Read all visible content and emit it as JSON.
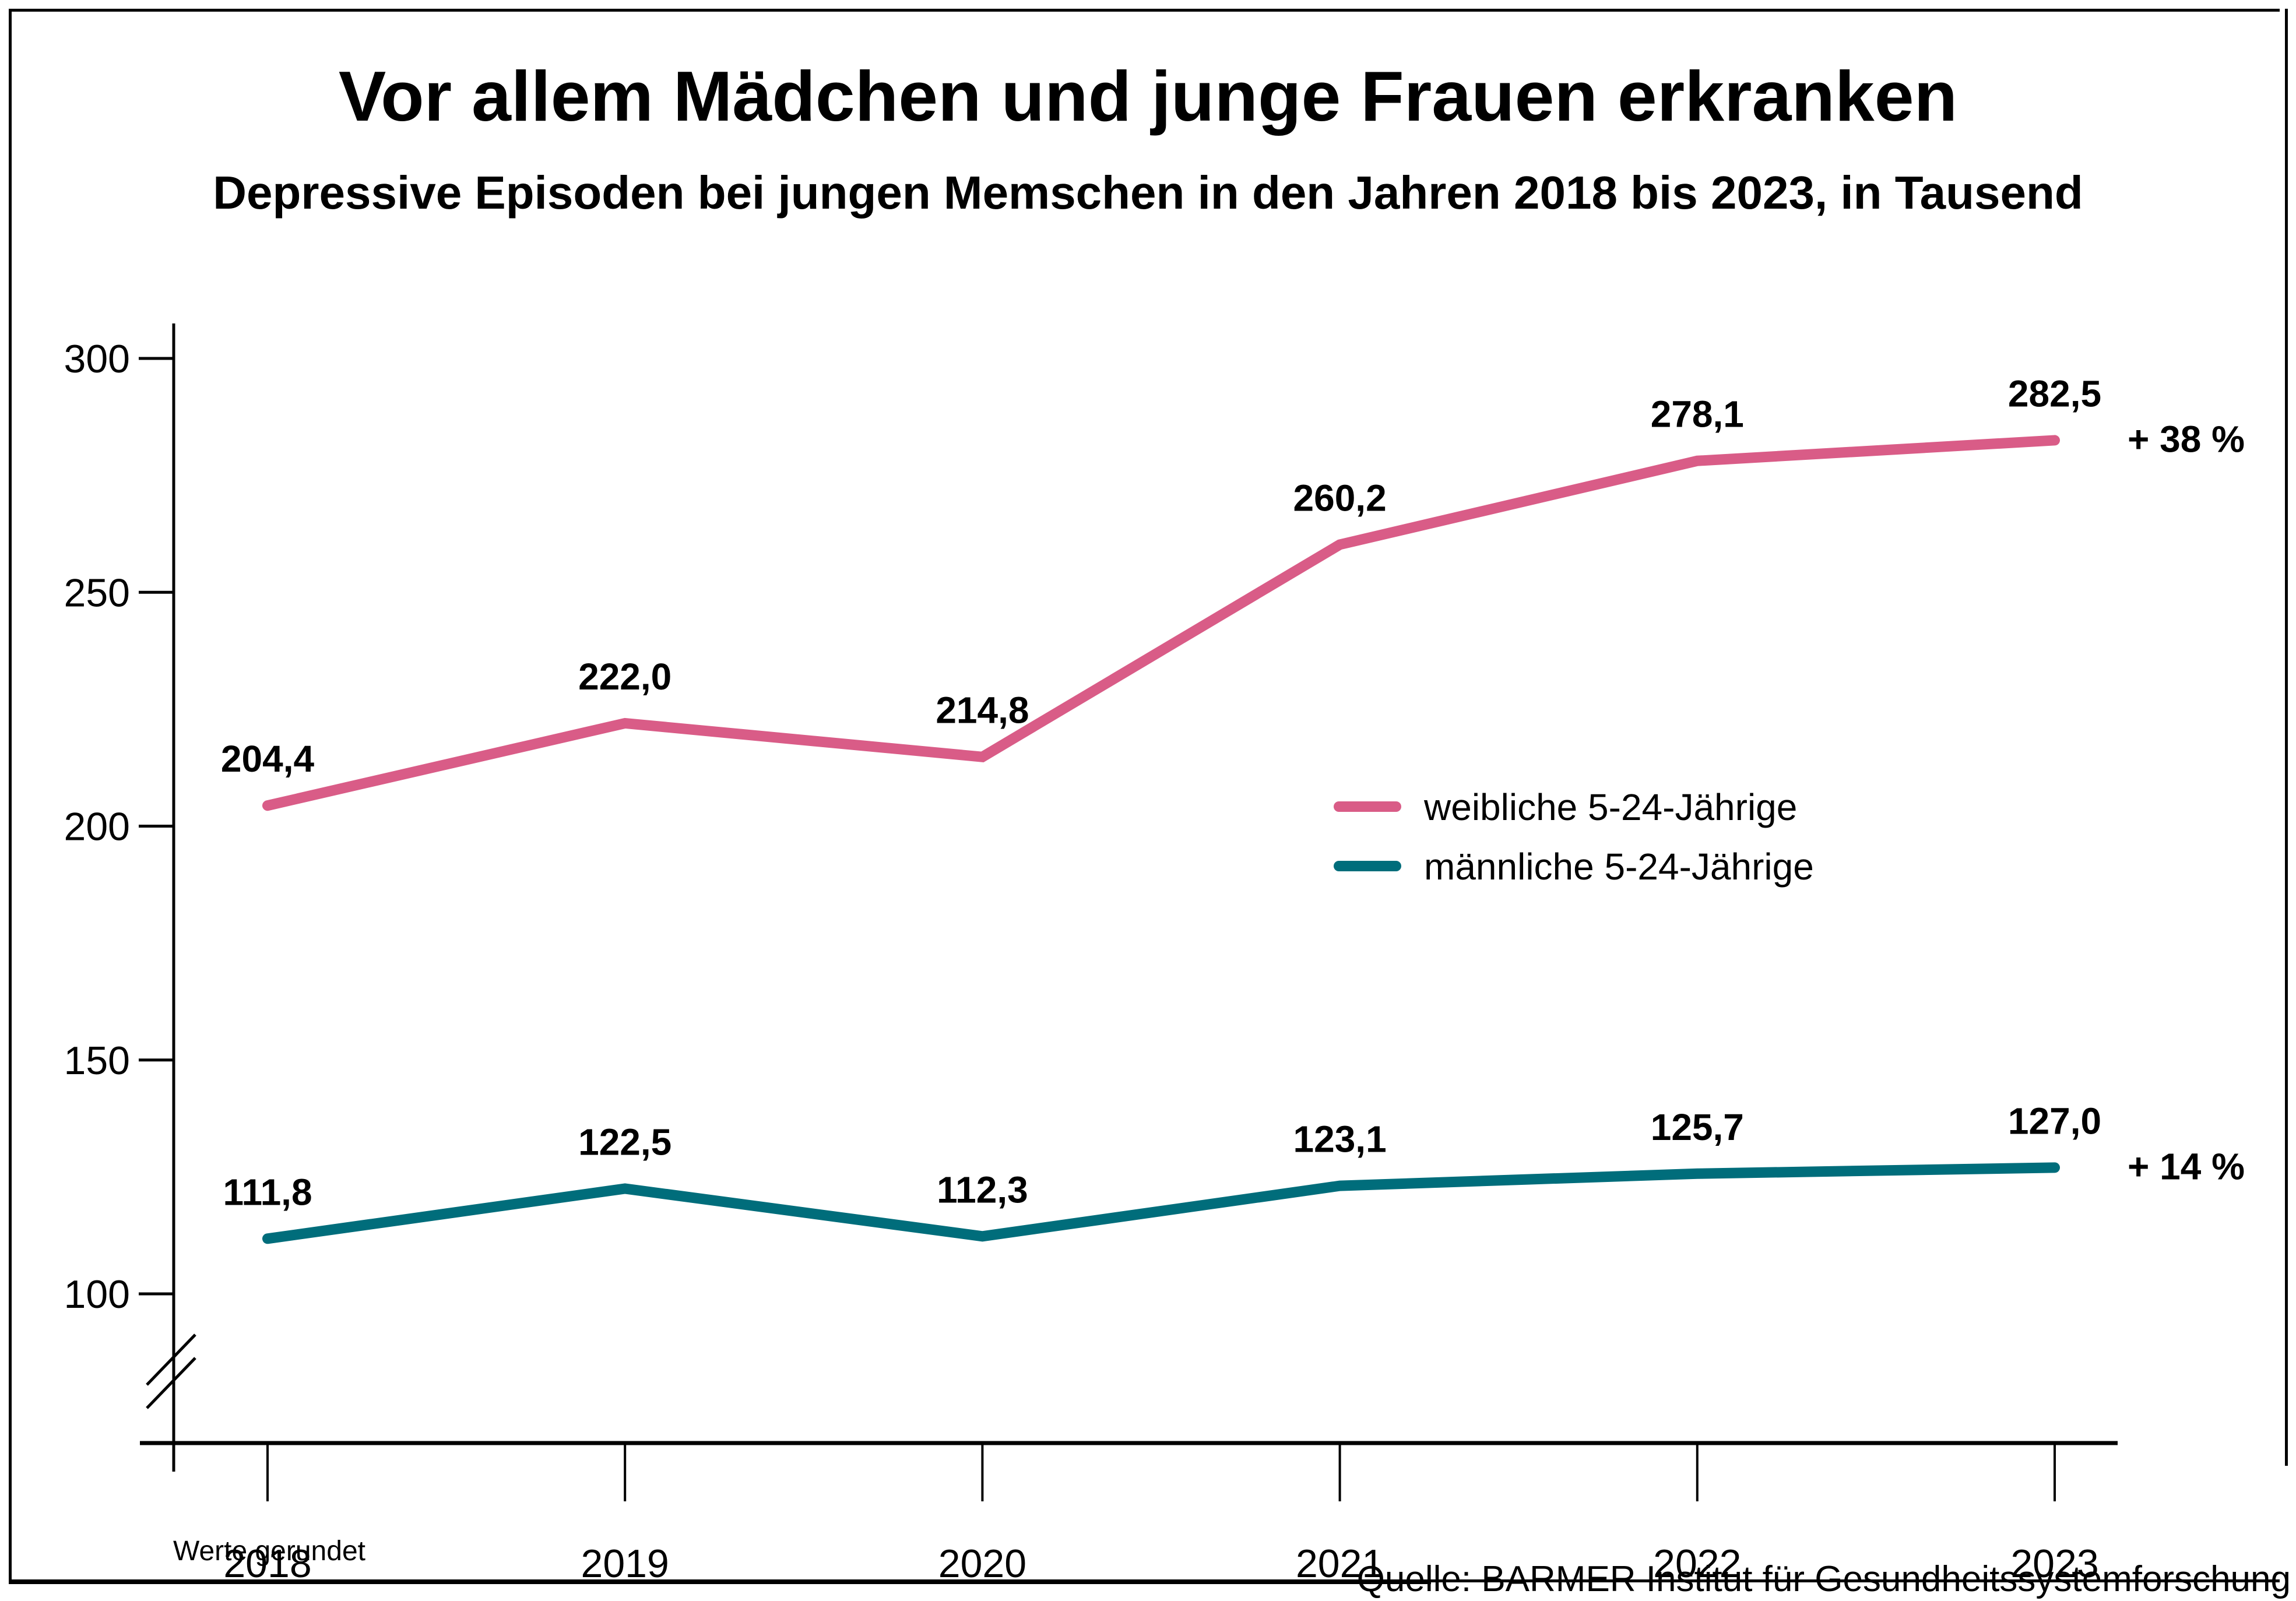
{
  "chart_data": {
    "type": "line",
    "title": "Vor allem Mädchen und junge Frauen erkranken",
    "subtitle": "Depressive Episoden bei jungen Memschen in den Jahren 2018 bis 2023, in Tausend",
    "xlabel": "",
    "ylabel": "",
    "x": [
      "2018",
      "2019",
      "2020",
      "2021",
      "2022",
      "2023"
    ],
    "ylim": [
      80,
      308
    ],
    "yticks": [
      100,
      150,
      200,
      250,
      300
    ],
    "ytick_labels": [
      "100",
      "150",
      "200",
      "250",
      "300"
    ],
    "axis_break": true,
    "grid": false,
    "legend_position": "center-right",
    "series": [
      {
        "name": "weibliche 5-24-Jährige",
        "color": "#d95c87",
        "values": [
          204.4,
          222.0,
          214.8,
          260.2,
          278.1,
          282.5
        ],
        "labels": [
          "204,4",
          "222,0",
          "214,8",
          "260,2",
          "278,1",
          "282,5"
        ],
        "change_label": "+ 38 %"
      },
      {
        "name": "männliche 5-24-Jährige",
        "color": "#006d7b",
        "values": [
          111.8,
          122.5,
          112.3,
          123.1,
          125.7,
          127.0
        ],
        "labels": [
          "111,8",
          "122,5",
          "112,3",
          "123,1",
          "125,7",
          "127,0"
        ],
        "change_label": "+ 14 %"
      }
    ],
    "note": "Werte gerundet",
    "source": "Quelle: BARMER Institut für Gesundheitssystemforschung"
  }
}
